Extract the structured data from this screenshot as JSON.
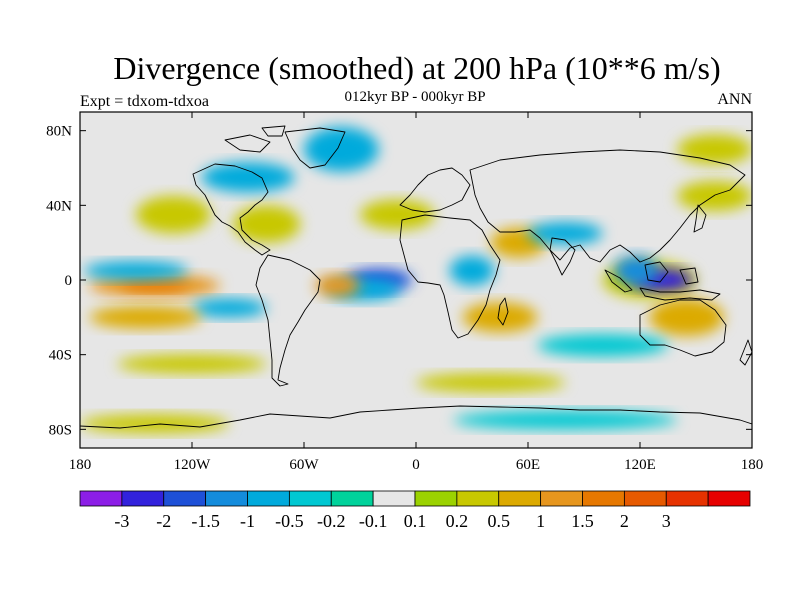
{
  "title": "Divergence (smoothed) at 200 hPa (10**6 m/s)",
  "subtitle": "012kyr BP - 000kyr BP",
  "experiment_label": "Expt = tdxom-tdxoa",
  "season_label": "ANN",
  "axes": {
    "lat_labels": [
      {
        "value": 80,
        "text": "80N"
      },
      {
        "value": 40,
        "text": "40N"
      },
      {
        "value": 0,
        "text": "0"
      },
      {
        "value": -40,
        "text": "40S"
      },
      {
        "value": -80,
        "text": "80S"
      }
    ],
    "lon_labels": [
      {
        "value": -180,
        "text": "180"
      },
      {
        "value": -120,
        "text": "120W"
      },
      {
        "value": -60,
        "text": "60W"
      },
      {
        "value": 0,
        "text": "0"
      },
      {
        "value": 60,
        "text": "60E"
      },
      {
        "value": 120,
        "text": "120E"
      },
      {
        "value": 180,
        "text": "180"
      }
    ]
  },
  "colorbar": {
    "colors": [
      "#8c1ee6",
      "#3222dc",
      "#1e50d7",
      "#148cdc",
      "#00aadc",
      "#00c8d2",
      "#00d29b",
      "#e6e6e6",
      "#9bd200",
      "#c8c800",
      "#dcaa00",
      "#e6961e",
      "#e67800",
      "#e65a00",
      "#e63200",
      "#e60000"
    ],
    "labels": [
      "-3",
      "-2",
      "-1.5",
      "-1",
      "-0.5",
      "-0.2",
      "-0.1",
      "0.1",
      "0.2",
      "0.5",
      "1",
      "1.5",
      "2",
      "3"
    ]
  },
  "chart_data": {
    "type": "filled_contour_map",
    "variable": "Divergence (smoothed) at 200 hPa",
    "units": "10**6 m/s",
    "comparison": "012kyr BP - 000kyr BP",
    "experiment": "tdxom-tdxoa",
    "season": "ANN",
    "lon_range": [
      -180,
      180
    ],
    "lat_range": [
      -90,
      90
    ],
    "contour_levels": [
      -3,
      -2,
      -1.5,
      -1,
      -0.5,
      -0.2,
      -0.1,
      0.1,
      0.2,
      0.5,
      1,
      1.5,
      2,
      3
    ],
    "regions": [
      {
        "lon": 125,
        "lat": 0,
        "rx": 25,
        "ry": 10,
        "value": 0.3
      },
      {
        "lon": 132,
        "lat": 0,
        "rx": 16,
        "ry": 6,
        "value": -2.5
      },
      {
        "lon": 118,
        "lat": 5,
        "rx": 12,
        "ry": 8,
        "value": -1.2
      },
      {
        "lon": -20,
        "lat": 0,
        "rx": 18,
        "ry": 6,
        "value": -1.5
      },
      {
        "lon": -28,
        "lat": -5,
        "rx": 20,
        "ry": 6,
        "value": -0.6
      },
      {
        "lon": -42,
        "lat": -3,
        "rx": 12,
        "ry": 6,
        "value": 1.5
      },
      {
        "lon": -140,
        "lat": -3,
        "rx": 35,
        "ry": 6,
        "value": 1.2
      },
      {
        "lon": -140,
        "lat": -3,
        "rx": 18,
        "ry": 3,
        "value": 2.0
      },
      {
        "lon": -150,
        "lat": 5,
        "rx": 28,
        "ry": 5,
        "value": -0.5
      },
      {
        "lon": -100,
        "lat": -15,
        "rx": 20,
        "ry": 5,
        "value": -0.5
      },
      {
        "lon": -145,
        "lat": -20,
        "rx": 30,
        "ry": 6,
        "value": 0.8
      },
      {
        "lon": -130,
        "lat": 35,
        "rx": 20,
        "ry": 10,
        "value": 0.5
      },
      {
        "lon": -80,
        "lat": 30,
        "rx": 18,
        "ry": 10,
        "value": 0.4
      },
      {
        "lon": -90,
        "lat": 55,
        "rx": 25,
        "ry": 8,
        "value": -0.5
      },
      {
        "lon": -40,
        "lat": 70,
        "rx": 20,
        "ry": 12,
        "value": -0.6
      },
      {
        "lon": -10,
        "lat": 35,
        "rx": 20,
        "ry": 8,
        "value": 0.5
      },
      {
        "lon": 55,
        "lat": 20,
        "rx": 15,
        "ry": 8,
        "value": 0.6
      },
      {
        "lon": 80,
        "lat": 25,
        "rx": 20,
        "ry": 6,
        "value": -0.5
      },
      {
        "lon": 30,
        "lat": 5,
        "rx": 12,
        "ry": 8,
        "value": -0.5
      },
      {
        "lon": 45,
        "lat": -20,
        "rx": 20,
        "ry": 8,
        "value": 0.6
      },
      {
        "lon": 145,
        "lat": -20,
        "rx": 20,
        "ry": 10,
        "value": 0.8
      },
      {
        "lon": 100,
        "lat": -35,
        "rx": 35,
        "ry": 6,
        "value": -0.4
      },
      {
        "lon": -120,
        "lat": -45,
        "rx": 40,
        "ry": 5,
        "value": 0.4
      },
      {
        "lon": 40,
        "lat": -55,
        "rx": 40,
        "ry": 5,
        "value": 0.4
      },
      {
        "lon": -140,
        "lat": -77,
        "rx": 40,
        "ry": 5,
        "value": 0.5
      },
      {
        "lon": 80,
        "lat": -75,
        "rx": 60,
        "ry": 5,
        "value": -0.4
      },
      {
        "lon": 160,
        "lat": 45,
        "rx": 20,
        "ry": 8,
        "value": 0.4
      },
      {
        "lon": 160,
        "lat": 70,
        "rx": 20,
        "ry": 8,
        "value": 0.4
      }
    ]
  }
}
